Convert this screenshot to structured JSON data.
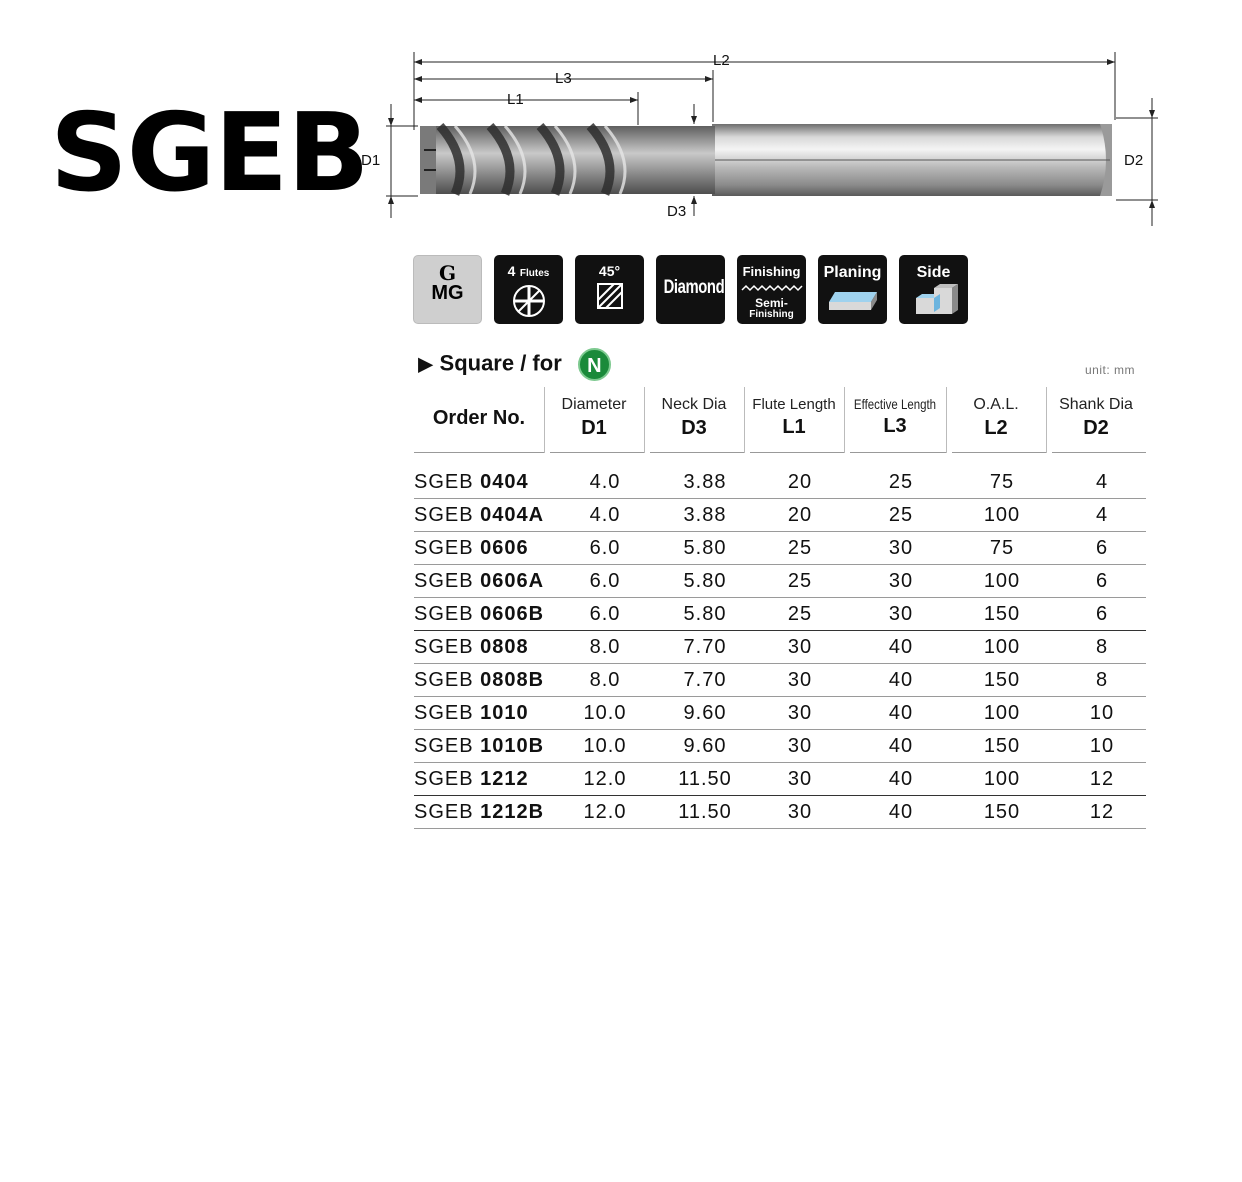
{
  "title": "SGEB",
  "dimension_labels": {
    "l2": "L2",
    "l3": "L3",
    "l1": "L1",
    "d1": "D1",
    "d2": "D2",
    "d3": "D3"
  },
  "icons": [
    {
      "name": "mg-grade-icon",
      "line1": "G",
      "line2": "MG"
    },
    {
      "name": "four-flutes-icon",
      "line1": "4",
      "line2": "Flutes"
    },
    {
      "name": "helix-45-icon",
      "line1": "45°"
    },
    {
      "name": "diamond-coating-icon",
      "line1": "Diamond"
    },
    {
      "name": "finishing-icon",
      "line1": "Finishing",
      "line2": "Semi-",
      "line3": "Finishing"
    },
    {
      "name": "planing-icon",
      "line1": "Planing"
    },
    {
      "name": "side-icon",
      "line1": "Side"
    }
  ],
  "section": {
    "title": "Square / for",
    "badge": "N",
    "unit": "unit: mm"
  },
  "table": {
    "order_header": "Order No.",
    "headers": [
      {
        "top": "Diameter",
        "bottom": "D1"
      },
      {
        "top": "Neck Dia",
        "bottom": "D3"
      },
      {
        "top": "Flute Length",
        "bottom": "L1"
      },
      {
        "top": "Effective Length",
        "bottom": "L3"
      },
      {
        "top": "O.A.L.",
        "bottom": "L2"
      },
      {
        "top": "Shank Dia",
        "bottom": "D2"
      }
    ],
    "rows": [
      {
        "prefix": "SGEB",
        "code": "0404",
        "d1": "4.0",
        "d3": "3.88",
        "l1": "20",
        "l3": "25",
        "l2": "75",
        "d2": "4"
      },
      {
        "prefix": "SGEB",
        "code": "0404A",
        "d1": "4.0",
        "d3": "3.88",
        "l1": "20",
        "l3": "25",
        "l2": "100",
        "d2": "4"
      },
      {
        "prefix": "SGEB",
        "code": "0606",
        "d1": "6.0",
        "d3": "5.80",
        "l1": "25",
        "l3": "30",
        "l2": "75",
        "d2": "6"
      },
      {
        "prefix": "SGEB",
        "code": "0606A",
        "d1": "6.0",
        "d3": "5.80",
        "l1": "25",
        "l3": "30",
        "l2": "100",
        "d2": "6"
      },
      {
        "prefix": "SGEB",
        "code": "0606B",
        "d1": "6.0",
        "d3": "5.80",
        "l1": "25",
        "l3": "30",
        "l2": "150",
        "d2": "6"
      },
      {
        "prefix": "SGEB",
        "code": "0808",
        "d1": "8.0",
        "d3": "7.70",
        "l1": "30",
        "l3": "40",
        "l2": "100",
        "d2": "8"
      },
      {
        "prefix": "SGEB",
        "code": "0808B",
        "d1": "8.0",
        "d3": "7.70",
        "l1": "30",
        "l3": "40",
        "l2": "150",
        "d2": "8"
      },
      {
        "prefix": "SGEB",
        "code": "1010",
        "d1": "10.0",
        "d3": "9.60",
        "l1": "30",
        "l3": "40",
        "l2": "100",
        "d2": "10"
      },
      {
        "prefix": "SGEB",
        "code": "1010B",
        "d1": "10.0",
        "d3": "9.60",
        "l1": "30",
        "l3": "40",
        "l2": "150",
        "d2": "10"
      },
      {
        "prefix": "SGEB",
        "code": "1212",
        "d1": "12.0",
        "d3": "11.50",
        "l1": "30",
        "l3": "40",
        "l2": "100",
        "d2": "12"
      },
      {
        "prefix": "SGEB",
        "code": "1212B",
        "d1": "12.0",
        "d3": "11.50",
        "l1": "30",
        "l3": "40",
        "l2": "150",
        "d2": "12"
      }
    ]
  }
}
